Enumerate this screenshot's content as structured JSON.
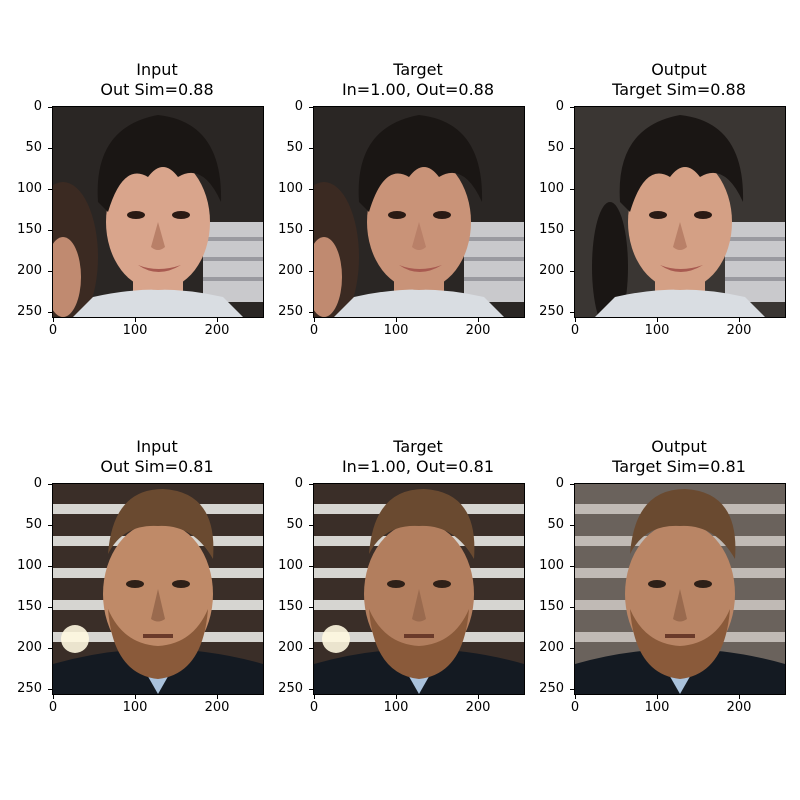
{
  "figure": {
    "rows": [
      {
        "panels": [
          {
            "title_line1": "Input",
            "title_line2": "Out Sim=0.88",
            "image": "face-young-man-dark-hair-original"
          },
          {
            "title_line1": "Target",
            "title_line2": "In=1.00, Out=0.88",
            "image": "face-young-man-dark-hair-target"
          },
          {
            "title_line1": "Output",
            "title_line2": "Target Sim=0.88",
            "image": "face-young-man-dark-hair-output"
          }
        ]
      },
      {
        "panels": [
          {
            "title_line1": "Input",
            "title_line2": "Out Sim=0.81",
            "image": "face-middle-aged-man-beard-original"
          },
          {
            "title_line1": "Target",
            "title_line2": "In=1.00, Out=0.81",
            "image": "face-middle-aged-man-beard-target"
          },
          {
            "title_line1": "Output",
            "title_line2": "Target Sim=0.81",
            "image": "face-middle-aged-man-beard-output"
          }
        ]
      }
    ],
    "y_ticks": [
      "0",
      "50",
      "100",
      "150",
      "200",
      "250"
    ],
    "x_ticks": [
      "0",
      "100",
      "200"
    ],
    "colors": {
      "hair_dark": "#1a1614",
      "skin_light": "#d9a58c",
      "skin_tan": "#b98565",
      "beard": "#8a5a3a",
      "background_white": "#ffffff"
    }
  }
}
